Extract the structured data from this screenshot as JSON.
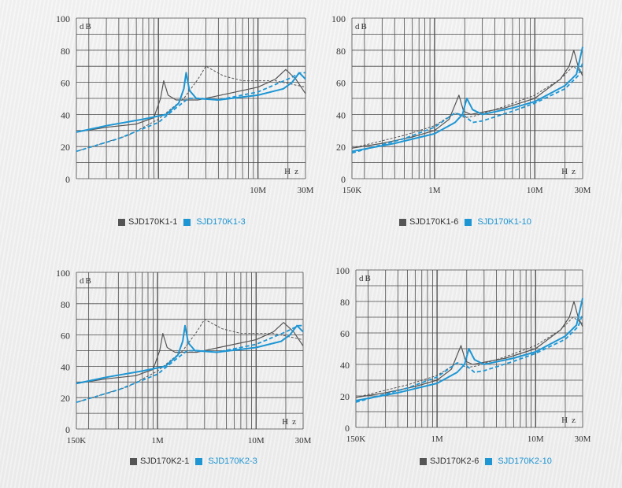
{
  "colors": {
    "gray": "#555555",
    "blue": "#1e96d4",
    "grid": "#4a4a4a"
  },
  "chart_data": [
    {
      "type": "line",
      "title": "",
      "xscale": "log",
      "xlim": [
        0.15,
        30
      ],
      "ylim": [
        0,
        100
      ],
      "ylabel": "dB",
      "xlabel": "Hz",
      "yticks": [
        "0",
        "20",
        "40",
        "60",
        "80",
        "100"
      ],
      "xticks": [
        {
          "v": 10,
          "label": "10M"
        },
        {
          "v": 30,
          "label": "30M"
        }
      ],
      "legend": [
        "SJD170K1-1",
        "SJD170K1-3"
      ],
      "series": [
        {
          "name": "SJD170K1-1",
          "style": "solid",
          "color": "gray",
          "points": [
            [
              0.15,
              29
            ],
            [
              0.3,
              32
            ],
            [
              0.6,
              34
            ],
            [
              0.9,
              38
            ],
            [
              1.05,
              50
            ],
            [
              1.13,
              61
            ],
            [
              1.25,
              52
            ],
            [
              1.5,
              49
            ],
            [
              2.5,
              49
            ],
            [
              5,
              53
            ],
            [
              10,
              57
            ],
            [
              15,
              62
            ],
            [
              19,
              68
            ],
            [
              24,
              62
            ],
            [
              30,
              53
            ]
          ]
        },
        {
          "name": "SJD170K1-1 (dashed)",
          "style": "dashed",
          "color": "gray",
          "points": [
            [
              0.15,
              17
            ],
            [
              0.5,
              27
            ],
            [
              1,
              37
            ],
            [
              1.8,
              50
            ],
            [
              2.5,
              62
            ],
            [
              3,
              70
            ],
            [
              4.5,
              64
            ],
            [
              7,
              61
            ],
            [
              15,
              61
            ],
            [
              30,
              57
            ]
          ]
        },
        {
          "name": "SJD170K1-3",
          "style": "solid",
          "color": "blue",
          "points": [
            [
              0.15,
              29
            ],
            [
              0.3,
              33
            ],
            [
              0.7,
              37
            ],
            [
              1.2,
              40
            ],
            [
              1.6,
              47
            ],
            [
              1.8,
              56
            ],
            [
              1.9,
              66
            ],
            [
              2.05,
              55
            ],
            [
              2.4,
              50
            ],
            [
              4,
              49
            ],
            [
              10,
              52
            ],
            [
              18,
              56
            ],
            [
              22,
              60
            ],
            [
              26,
              66
            ],
            [
              30,
              62
            ]
          ]
        },
        {
          "name": "SJD170K1-3 (dashed)",
          "style": "dashed",
          "color": "blue",
          "points": [
            [
              0.15,
              17
            ],
            [
              0.4,
              25
            ],
            [
              1,
              35
            ],
            [
              1.5,
              44
            ],
            [
              2,
              50
            ],
            [
              2.7,
              50
            ],
            [
              4,
              49
            ],
            [
              10,
              54
            ],
            [
              20,
              62
            ],
            [
              27,
              66
            ],
            [
              30,
              66
            ]
          ]
        }
      ]
    },
    {
      "type": "line",
      "title": "",
      "xscale": "log",
      "xlim": [
        0.15,
        30
      ],
      "ylim": [
        0,
        100
      ],
      "ylabel": "dB",
      "xlabel": "Hz",
      "yticks": [
        "0",
        "20",
        "40",
        "60",
        "80",
        "100"
      ],
      "xticks": [
        {
          "v": 0.15,
          "label": "150K"
        },
        {
          "v": 1,
          "label": "1M"
        },
        {
          "v": 10,
          "label": "10M"
        },
        {
          "v": 30,
          "label": "30M"
        }
      ],
      "legend": [
        "SJD170K1-6",
        "SJD170K1-10"
      ],
      "series": [
        {
          "name": "SJD170K1-6",
          "style": "solid",
          "color": "gray",
          "points": [
            [
              0.15,
              19
            ],
            [
              0.3,
              22
            ],
            [
              0.6,
              26
            ],
            [
              1,
              30
            ],
            [
              1.4,
              37
            ],
            [
              1.75,
              52
            ],
            [
              1.95,
              42
            ],
            [
              2.3,
              40
            ],
            [
              5,
              44
            ],
            [
              10,
              50
            ],
            [
              18,
              62
            ],
            [
              22,
              70
            ],
            [
              24.5,
              80
            ],
            [
              27,
              70
            ],
            [
              30,
              64
            ]
          ]
        },
        {
          "name": "SJD170K1-6 (dashed)",
          "style": "dashed",
          "color": "gray",
          "points": [
            [
              0.15,
              19
            ],
            [
              0.5,
              27
            ],
            [
              1,
              33
            ],
            [
              1.6,
              41
            ],
            [
              2,
              38
            ],
            [
              2.5,
              39
            ],
            [
              5,
              45
            ],
            [
              10,
              52
            ],
            [
              18,
              62
            ],
            [
              24,
              70
            ],
            [
              30,
              66
            ]
          ]
        },
        {
          "name": "SJD170K1-10",
          "style": "solid",
          "color": "blue",
          "points": [
            [
              0.15,
              17
            ],
            [
              0.4,
              22
            ],
            [
              1,
              28
            ],
            [
              1.6,
              35
            ],
            [
              1.9,
              40
            ],
            [
              2.1,
              50
            ],
            [
              2.4,
              43
            ],
            [
              3,
              40
            ],
            [
              6,
              44
            ],
            [
              10,
              48
            ],
            [
              20,
              58
            ],
            [
              26,
              65
            ],
            [
              30,
              82
            ]
          ]
        },
        {
          "name": "SJD170K1-10 (dashed)",
          "style": "dashed",
          "color": "blue",
          "points": [
            [
              0.15,
              16
            ],
            [
              0.5,
              25
            ],
            [
              1,
              32
            ],
            [
              1.6,
              41
            ],
            [
              2,
              39
            ],
            [
              2.4,
              35
            ],
            [
              3,
              36
            ],
            [
              6,
              42
            ],
            [
              10,
              47
            ],
            [
              20,
              56
            ],
            [
              27,
              64
            ],
            [
              30,
              72
            ]
          ]
        }
      ]
    },
    {
      "type": "line",
      "title": "",
      "xscale": "log",
      "xlim": [
        0.15,
        30
      ],
      "ylim": [
        0,
        100
      ],
      "ylabel": "dB",
      "xlabel": "Hz",
      "yticks": [
        "0",
        "20",
        "40",
        "60",
        "80",
        "100"
      ],
      "xticks": [
        {
          "v": 0.15,
          "label": "150K"
        },
        {
          "v": 1,
          "label": "1M"
        },
        {
          "v": 10,
          "label": "10M"
        },
        {
          "v": 30,
          "label": "30M"
        }
      ],
      "legend": [
        "SJD170K2-1",
        "SJD170K2-3"
      ],
      "series": [
        {
          "name": "SJD170K2-1",
          "style": "solid",
          "color": "gray",
          "points": [
            [
              0.15,
              29
            ],
            [
              0.3,
              32
            ],
            [
              0.6,
              34
            ],
            [
              0.9,
              38
            ],
            [
              1.05,
              50
            ],
            [
              1.13,
              61
            ],
            [
              1.25,
              52
            ],
            [
              1.5,
              49
            ],
            [
              2.5,
              49
            ],
            [
              5,
              53
            ],
            [
              10,
              57
            ],
            [
              15,
              62
            ],
            [
              19,
              68
            ],
            [
              24,
              62
            ],
            [
              30,
              53
            ]
          ]
        },
        {
          "name": "SJD170K2-1 (dashed)",
          "style": "dashed",
          "color": "gray",
          "points": [
            [
              0.15,
              17
            ],
            [
              0.5,
              27
            ],
            [
              1,
              37
            ],
            [
              1.8,
              50
            ],
            [
              2.5,
              62
            ],
            [
              3,
              70
            ],
            [
              4.5,
              64
            ],
            [
              7,
              61
            ],
            [
              15,
              61
            ],
            [
              30,
              57
            ]
          ]
        },
        {
          "name": "SJD170K2-3",
          "style": "solid",
          "color": "blue",
          "points": [
            [
              0.15,
              29
            ],
            [
              0.3,
              33
            ],
            [
              0.7,
              37
            ],
            [
              1.2,
              40
            ],
            [
              1.6,
              47
            ],
            [
              1.8,
              56
            ],
            [
              1.9,
              66
            ],
            [
              2.05,
              55
            ],
            [
              2.4,
              50
            ],
            [
              4,
              49
            ],
            [
              10,
              52
            ],
            [
              18,
              56
            ],
            [
              22,
              60
            ],
            [
              26,
              66
            ],
            [
              30,
              62
            ]
          ]
        },
        {
          "name": "SJD170K2-3 (dashed)",
          "style": "dashed",
          "color": "blue",
          "points": [
            [
              0.15,
              17
            ],
            [
              0.4,
              25
            ],
            [
              1,
              35
            ],
            [
              1.5,
              44
            ],
            [
              2,
              50
            ],
            [
              2.7,
              50
            ],
            [
              4,
              49
            ],
            [
              10,
              54
            ],
            [
              20,
              62
            ],
            [
              27,
              66
            ],
            [
              30,
              66
            ]
          ]
        }
      ]
    },
    {
      "type": "line",
      "title": "",
      "xscale": "log",
      "xlim": [
        0.15,
        30
      ],
      "ylim": [
        0,
        100
      ],
      "ylabel": "dB",
      "xlabel": "Hz",
      "yticks": [
        "0",
        "20",
        "40",
        "60",
        "80",
        "100"
      ],
      "xticks": [
        {
          "v": 0.15,
          "label": "150K"
        },
        {
          "v": 1,
          "label": "1M"
        },
        {
          "v": 10,
          "label": "10M"
        },
        {
          "v": 30,
          "label": "30M"
        }
      ],
      "legend": [
        "SJD170K2-6",
        "SJD170K2-10"
      ],
      "series": [
        {
          "name": "SJD170K2-6",
          "style": "solid",
          "color": "gray",
          "points": [
            [
              0.15,
              19
            ],
            [
              0.3,
              22
            ],
            [
              0.6,
              26
            ],
            [
              1,
              30
            ],
            [
              1.4,
              37
            ],
            [
              1.75,
              52
            ],
            [
              1.95,
              42
            ],
            [
              2.3,
              40
            ],
            [
              5,
              44
            ],
            [
              10,
              50
            ],
            [
              18,
              62
            ],
            [
              22,
              70
            ],
            [
              24.5,
              80
            ],
            [
              27,
              70
            ],
            [
              30,
              64
            ]
          ]
        },
        {
          "name": "SJD170K2-6 (dashed)",
          "style": "dashed",
          "color": "gray",
          "points": [
            [
              0.15,
              19
            ],
            [
              0.5,
              27
            ],
            [
              1,
              33
            ],
            [
              1.6,
              41
            ],
            [
              2,
              38
            ],
            [
              2.5,
              39
            ],
            [
              5,
              45
            ],
            [
              10,
              52
            ],
            [
              18,
              62
            ],
            [
              24,
              70
            ],
            [
              30,
              66
            ]
          ]
        },
        {
          "name": "SJD170K2-10",
          "style": "solid",
          "color": "blue",
          "points": [
            [
              0.15,
              17
            ],
            [
              0.4,
              22
            ],
            [
              1,
              28
            ],
            [
              1.6,
              35
            ],
            [
              1.9,
              40
            ],
            [
              2.1,
              50
            ],
            [
              2.4,
              43
            ],
            [
              3,
              40
            ],
            [
              6,
              44
            ],
            [
              10,
              48
            ],
            [
              20,
              58
            ],
            [
              26,
              65
            ],
            [
              30,
              82
            ]
          ]
        },
        {
          "name": "SJD170K2-10 (dashed)",
          "style": "dashed",
          "color": "blue",
          "points": [
            [
              0.15,
              16
            ],
            [
              0.5,
              25
            ],
            [
              1,
              32
            ],
            [
              1.6,
              41
            ],
            [
              2,
              39
            ],
            [
              2.4,
              35
            ],
            [
              3,
              36
            ],
            [
              6,
              42
            ],
            [
              10,
              47
            ],
            [
              20,
              56
            ],
            [
              27,
              64
            ],
            [
              30,
              72
            ]
          ]
        }
      ]
    }
  ]
}
